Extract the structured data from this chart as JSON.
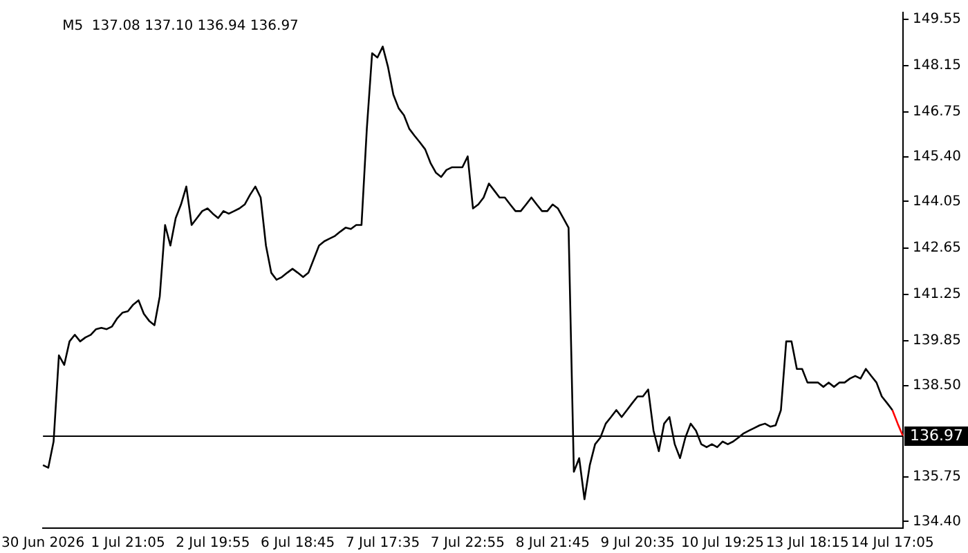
{
  "chart_data": {
    "type": "line",
    "title": "M5  137.08 137.10 136.94 136.97",
    "categories": [
      "30 Jun 2026",
      null,
      null,
      null,
      null,
      null,
      null,
      null,
      null,
      null,
      null,
      null,
      null,
      null,
      null,
      null,
      "1 Jul 21:05",
      null,
      null,
      null,
      null,
      null,
      null,
      null,
      null,
      null,
      null,
      null,
      null,
      null,
      null,
      null,
      "2 Jul 19:55",
      null,
      null,
      null,
      null,
      null,
      null,
      null,
      null,
      null,
      null,
      null,
      null,
      null,
      null,
      null,
      "6 Jul 18:45",
      null,
      null,
      null,
      null,
      null,
      null,
      null,
      null,
      null,
      null,
      null,
      null,
      null,
      null,
      null,
      "7 Jul 17:35",
      null,
      null,
      null,
      null,
      null,
      null,
      null,
      null,
      null,
      null,
      null,
      null,
      null,
      null,
      null,
      "7 Jul 22:55",
      null,
      null,
      null,
      null,
      null,
      null,
      null,
      null,
      null,
      null,
      null,
      null,
      null,
      null,
      null,
      "8 Jul 21:45",
      null,
      null,
      null,
      null,
      null,
      null,
      null,
      null,
      null,
      null,
      null,
      null,
      null,
      null,
      null,
      "9 Jul 20:35",
      null,
      null,
      null,
      null,
      null,
      null,
      null,
      null,
      null,
      null,
      null,
      null,
      null,
      null,
      null,
      "10 Jul 19:25",
      null,
      null,
      null,
      null,
      null,
      null,
      null,
      null,
      null,
      null,
      null,
      null,
      null,
      null,
      null,
      "13 Jul 18:15",
      null,
      null,
      null,
      null,
      null,
      null,
      null,
      null,
      null,
      null,
      null,
      null,
      null,
      null,
      null,
      "14 Jul 17:05",
      null,
      null
    ],
    "series": [
      {
        "color": "#000000",
        "values": [
          136.1,
          136.02,
          136.81,
          139.41,
          139.12,
          139.83,
          140.03,
          139.83,
          139.95,
          140.03,
          140.2,
          140.24,
          140.2,
          140.28,
          140.53,
          140.7,
          140.74,
          140.94,
          141.07,
          140.66,
          140.45,
          140.32,
          141.19,
          143.34,
          142.72,
          143.55,
          143.96,
          144.5,
          143.34,
          143.55,
          143.76,
          143.84,
          143.68,
          143.55,
          143.76,
          143.68,
          143.76,
          143.84,
          143.96,
          144.25,
          144.5,
          144.17,
          142.72,
          141.9,
          141.69,
          141.77,
          141.9,
          142.02,
          141.9,
          141.77,
          141.9,
          142.31,
          142.72,
          142.85,
          142.93,
          143.01,
          143.14,
          143.26,
          143.22,
          143.34,
          143.34,
          146.24,
          148.52,
          148.39,
          148.72,
          148.1,
          147.27,
          146.86,
          146.65,
          146.24,
          146.03,
          145.83,
          145.62,
          145.21,
          144.92,
          144.79,
          145.0,
          145.08,
          145.08,
          145.08,
          145.41,
          143.84,
          143.96,
          144.17,
          144.59,
          144.38,
          144.17,
          144.17,
          143.96,
          143.76,
          143.76,
          143.96,
          144.17,
          143.96,
          143.76,
          143.76,
          143.96,
          143.84,
          143.55,
          143.26,
          135.9,
          136.31,
          135.07,
          136.1,
          136.73,
          136.93,
          137.35,
          137.55,
          137.76,
          137.55,
          137.76,
          137.97,
          138.17,
          138.17,
          138.38,
          137.14,
          136.52,
          137.35,
          137.55,
          136.73,
          136.31,
          136.93,
          137.35,
          137.14,
          136.73,
          136.64,
          136.73,
          136.64,
          136.81,
          136.73,
          136.81,
          136.93,
          137.06,
          137.14,
          137.22,
          137.3,
          137.35,
          137.26,
          137.3,
          137.76,
          139.83,
          139.83,
          139.0,
          139.0,
          138.59,
          138.59,
          138.59,
          138.46,
          138.59,
          138.46,
          138.59,
          138.59,
          138.71,
          138.79,
          138.71,
          139.0,
          138.79,
          138.59,
          138.17,
          137.97,
          137.76,
          null,
          null
        ]
      },
      {
        "color": "#ff0000",
        "values": [
          null,
          null,
          null,
          null,
          null,
          null,
          null,
          null,
          null,
          null,
          null,
          null,
          null,
          null,
          null,
          null,
          null,
          null,
          null,
          null,
          null,
          null,
          null,
          null,
          null,
          null,
          null,
          null,
          null,
          null,
          null,
          null,
          null,
          null,
          null,
          null,
          null,
          null,
          null,
          null,
          null,
          null,
          null,
          null,
          null,
          null,
          null,
          null,
          null,
          null,
          null,
          null,
          null,
          null,
          null,
          null,
          null,
          null,
          null,
          null,
          null,
          null,
          null,
          null,
          null,
          null,
          null,
          null,
          null,
          null,
          null,
          null,
          null,
          null,
          null,
          null,
          null,
          null,
          null,
          null,
          null,
          null,
          null,
          null,
          null,
          null,
          null,
          null,
          null,
          null,
          null,
          null,
          null,
          null,
          null,
          null,
          null,
          null,
          null,
          null,
          null,
          null,
          null,
          null,
          null,
          null,
          null,
          null,
          null,
          null,
          null,
          null,
          null,
          null,
          null,
          null,
          null,
          null,
          null,
          null,
          null,
          null,
          null,
          null,
          null,
          null,
          null,
          null,
          null,
          null,
          null,
          null,
          null,
          null,
          null,
          null,
          null,
          null,
          null,
          null,
          null,
          null,
          null,
          null,
          null,
          null,
          null,
          null,
          null,
          null,
          null,
          null,
          null,
          null,
          null,
          null,
          null,
          null,
          null,
          null,
          137.76,
          137.35,
          136.97
        ]
      }
    ],
    "ylim": [
      134.2,
      149.75
    ],
    "yticks": [
      149.55,
      148.15,
      146.75,
      {
        "value": 145.4,
        "label": "145.40"
      },
      144.05,
      142.65,
      141.25,
      139.85,
      {
        "value": 138.5,
        "label": "138.50"
      },
      135.75,
      {
        "value": 134.4,
        "label": "134.40"
      }
    ],
    "ref_lines": [
      {
        "axis": "y",
        "value": 136.97,
        "label": "136.97",
        "color": "#000000"
      }
    ],
    "grid": false,
    "legend": false,
    "marker": "none",
    "line_style": "solid"
  }
}
